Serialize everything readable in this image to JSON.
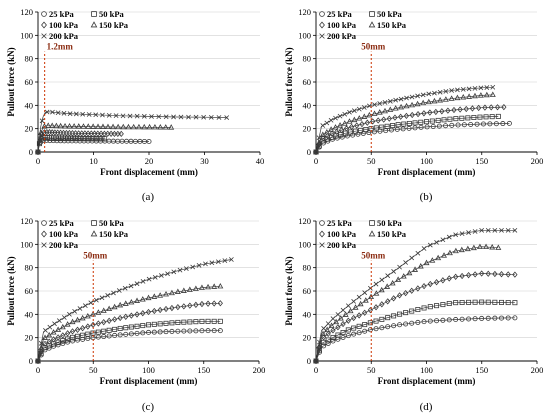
{
  "figure": {
    "axis_color": "#000000",
    "grid_color": "#d0d0d0",
    "marker_color": "#3a3a3a",
    "ref_line_color": "#cc3300",
    "ref_label_color": "#8b2c12"
  },
  "chart_data": [
    {
      "type": "scatter",
      "panel_label": "(a)",
      "xlabel": "Front displacement (mm)",
      "ylabel": "Pullout force (kN)",
      "xlim": [
        0,
        40
      ],
      "ylim": [
        0,
        120
      ],
      "xticks": [
        0,
        10,
        20,
        30,
        40
      ],
      "yticks": [
        0,
        20,
        40,
        60,
        80,
        100,
        120
      ],
      "legend_position": "top-left",
      "annotation": {
        "label": "1.2mm",
        "x": 1.2
      },
      "series": [
        {
          "name": "25 kPa",
          "marker": "circle",
          "points": [
            [
              0,
              0
            ],
            [
              0.2,
              5
            ],
            [
              0.4,
              8
            ],
            [
              0.7,
              9.5
            ],
            [
              1,
              10
            ],
            [
              1.3,
              10
            ],
            [
              2,
              9.8
            ],
            [
              4,
              9.6
            ],
            [
              7,
              9.5
            ],
            [
              10,
              9.4
            ],
            [
              13,
              9.3
            ],
            [
              16,
              9.2
            ],
            [
              18,
              9.1
            ],
            [
              20,
              9
            ]
          ]
        },
        {
          "name": "50 kPa",
          "marker": "square",
          "points": [
            [
              0,
              0
            ],
            [
              0.2,
              6
            ],
            [
              0.4,
              10
            ],
            [
              0.7,
              12
            ],
            [
              1,
              12.5
            ],
            [
              1.3,
              12.5
            ],
            [
              2,
              12.2
            ],
            [
              4,
              12
            ],
            [
              6,
              11.8
            ],
            [
              8,
              11.6
            ],
            [
              10,
              11.5
            ],
            [
              12,
              11.4
            ]
          ]
        },
        {
          "name": "100 kPa",
          "marker": "diamond",
          "points": [
            [
              0,
              0
            ],
            [
              0.2,
              7
            ],
            [
              0.5,
              13
            ],
            [
              0.8,
              16
            ],
            [
              1.2,
              17
            ],
            [
              2,
              17
            ],
            [
              4,
              16.5
            ],
            [
              7,
              16
            ],
            [
              10,
              15.8
            ],
            [
              13,
              15.6
            ],
            [
              15,
              15.5
            ]
          ]
        },
        {
          "name": "150 kPa",
          "marker": "triangle",
          "points": [
            [
              0,
              0
            ],
            [
              0.2,
              8
            ],
            [
              0.5,
              16
            ],
            [
              0.9,
              21
            ],
            [
              1.3,
              22.5
            ],
            [
              2,
              22.5
            ],
            [
              5,
              22
            ],
            [
              8,
              21.8
            ],
            [
              12,
              21.5
            ],
            [
              16,
              21.3
            ],
            [
              20,
              21.2
            ],
            [
              24,
              21
            ]
          ]
        },
        {
          "name": "200 kPa",
          "marker": "cross",
          "points": [
            [
              0,
              0
            ],
            [
              0.2,
              10
            ],
            [
              0.5,
              22
            ],
            [
              0.9,
              30
            ],
            [
              1.3,
              34
            ],
            [
              2,
              34.5
            ],
            [
              5,
              33
            ],
            [
              10,
              32
            ],
            [
              15,
              31
            ],
            [
              20,
              30.5
            ],
            [
              25,
              30
            ],
            [
              30,
              29.8
            ],
            [
              34,
              29.5
            ]
          ]
        }
      ]
    },
    {
      "type": "scatter",
      "panel_label": "(b)",
      "xlabel": "Front displacement (mm)",
      "ylabel": "Pullout force (kN)",
      "xlim": [
        0,
        200
      ],
      "ylim": [
        0,
        120
      ],
      "xticks": [
        0,
        50,
        100,
        150,
        200
      ],
      "yticks": [
        0,
        20,
        40,
        60,
        80,
        100,
        120
      ],
      "legend_position": "top-left",
      "annotation": {
        "label": "50mm",
        "x": 50
      },
      "series": [
        {
          "name": "25 kPa",
          "marker": "circle",
          "points": [
            [
              0,
              0
            ],
            [
              5,
              7
            ],
            [
              15,
              11
            ],
            [
              30,
              14
            ],
            [
              50,
              17
            ],
            [
              75,
              19.5
            ],
            [
              100,
              21.5
            ],
            [
              125,
              23
            ],
            [
              150,
              24
            ],
            [
              175,
              24.5
            ]
          ]
        },
        {
          "name": "50 kPa",
          "marker": "square",
          "points": [
            [
              0,
              0
            ],
            [
              5,
              9
            ],
            [
              15,
              13
            ],
            [
              30,
              17
            ],
            [
              50,
              20
            ],
            [
              75,
              23.5
            ],
            [
              100,
              26
            ],
            [
              125,
              28.5
            ],
            [
              150,
              30
            ],
            [
              165,
              30.5
            ]
          ]
        },
        {
          "name": "100 kPa",
          "marker": "diamond",
          "points": [
            [
              0,
              0
            ],
            [
              5,
              11
            ],
            [
              15,
              16
            ],
            [
              30,
              21
            ],
            [
              50,
              26
            ],
            [
              75,
              30
            ],
            [
              100,
              33.5
            ],
            [
              125,
              36
            ],
            [
              150,
              38
            ],
            [
              170,
              38.5
            ]
          ]
        },
        {
          "name": "150 kPa",
          "marker": "triangle",
          "points": [
            [
              0,
              0
            ],
            [
              5,
              14
            ],
            [
              15,
              20
            ],
            [
              30,
              26
            ],
            [
              50,
              32
            ],
            [
              75,
              38
            ],
            [
              100,
              42.5
            ],
            [
              125,
              46
            ],
            [
              150,
              48.5
            ],
            [
              160,
              49
            ]
          ]
        },
        {
          "name": "200 kPa",
          "marker": "cross",
          "points": [
            [
              0,
              0
            ],
            [
              5,
              22
            ],
            [
              15,
              28
            ],
            [
              30,
              34
            ],
            [
              50,
              40
            ],
            [
              75,
              45
            ],
            [
              100,
              49.5
            ],
            [
              125,
              53
            ],
            [
              150,
              55
            ],
            [
              160,
              55.5
            ]
          ]
        }
      ]
    },
    {
      "type": "scatter",
      "panel_label": "(c)",
      "xlabel": "Front displacement (mm)",
      "ylabel": "Pullout force (kN)",
      "xlim": [
        0,
        200
      ],
      "ylim": [
        0,
        120
      ],
      "xticks": [
        0,
        50,
        100,
        150,
        200
      ],
      "yticks": [
        0,
        20,
        40,
        60,
        80,
        100,
        120
      ],
      "legend_position": "top-left",
      "annotation": {
        "label": "50mm",
        "x": 50
      },
      "series": [
        {
          "name": "25 kPa",
          "marker": "circle",
          "points": [
            [
              0,
              0
            ],
            [
              5,
              9
            ],
            [
              15,
              13
            ],
            [
              30,
              17
            ],
            [
              50,
              20
            ],
            [
              75,
              22.5
            ],
            [
              100,
              24.5
            ],
            [
              125,
              25.5
            ],
            [
              150,
              26
            ],
            [
              165,
              26
            ]
          ]
        },
        {
          "name": "50 kPa",
          "marker": "square",
          "points": [
            [
              0,
              0
            ],
            [
              5,
              11
            ],
            [
              15,
              15
            ],
            [
              30,
              20
            ],
            [
              50,
              24
            ],
            [
              75,
              28
            ],
            [
              100,
              31
            ],
            [
              125,
              33
            ],
            [
              150,
              34
            ],
            [
              165,
              34
            ]
          ]
        },
        {
          "name": "100 kPa",
          "marker": "diamond",
          "points": [
            [
              0,
              0
            ],
            [
              5,
              14
            ],
            [
              15,
              19
            ],
            [
              30,
              25
            ],
            [
              50,
              31
            ],
            [
              75,
              37
            ],
            [
              100,
              42
            ],
            [
              125,
              46
            ],
            [
              150,
              49
            ],
            [
              165,
              49.5
            ]
          ]
        },
        {
          "name": "150 kPa",
          "marker": "triangle",
          "points": [
            [
              0,
              0
            ],
            [
              5,
              19
            ],
            [
              15,
              25
            ],
            [
              30,
              33
            ],
            [
              50,
              40
            ],
            [
              75,
              48
            ],
            [
              100,
              54
            ],
            [
              125,
              59
            ],
            [
              150,
              63
            ],
            [
              165,
              64
            ]
          ]
        },
        {
          "name": "200 kPa",
          "marker": "cross",
          "points": [
            [
              0,
              0
            ],
            [
              5,
              25
            ],
            [
              15,
              32
            ],
            [
              30,
              41
            ],
            [
              50,
              51
            ],
            [
              75,
              61
            ],
            [
              100,
              70
            ],
            [
              125,
              77
            ],
            [
              150,
              83
            ],
            [
              175,
              87
            ]
          ]
        }
      ]
    },
    {
      "type": "scatter",
      "panel_label": "(d)",
      "xlabel": "Front displacement (mm)",
      "ylabel": "Pullout force (kN)",
      "xlim": [
        0,
        200
      ],
      "ylim": [
        0,
        120
      ],
      "xticks": [
        0,
        50,
        100,
        150,
        200
      ],
      "yticks": [
        0,
        20,
        40,
        60,
        80,
        100,
        120
      ],
      "legend_position": "top-left",
      "annotation": {
        "label": "50mm",
        "x": 50
      },
      "series": [
        {
          "name": "25 kPa",
          "marker": "circle",
          "points": [
            [
              0,
              0
            ],
            [
              5,
              12
            ],
            [
              15,
              17
            ],
            [
              30,
              22
            ],
            [
              50,
              27
            ],
            [
              75,
              31
            ],
            [
              100,
              34
            ],
            [
              125,
              35.5
            ],
            [
              150,
              36.5
            ],
            [
              180,
              37
            ]
          ]
        },
        {
          "name": "50 kPa",
          "marker": "square",
          "points": [
            [
              0,
              0
            ],
            [
              5,
              15
            ],
            [
              15,
              20
            ],
            [
              30,
              27
            ],
            [
              50,
              33
            ],
            [
              75,
              40
            ],
            [
              100,
              46
            ],
            [
              125,
              50
            ],
            [
              150,
              50.5
            ],
            [
              180,
              50
            ]
          ]
        },
        {
          "name": "100 kPa",
          "marker": "diamond",
          "points": [
            [
              0,
              0
            ],
            [
              5,
              19
            ],
            [
              15,
              26
            ],
            [
              30,
              35
            ],
            [
              50,
              44
            ],
            [
              75,
              56
            ],
            [
              100,
              65
            ],
            [
              125,
              72
            ],
            [
              150,
              75
            ],
            [
              180,
              74
            ]
          ]
        },
        {
          "name": "150 kPa",
          "marker": "triangle",
          "points": [
            [
              0,
              0
            ],
            [
              5,
              22
            ],
            [
              15,
              31
            ],
            [
              30,
              42
            ],
            [
              50,
              55
            ],
            [
              75,
              70
            ],
            [
              100,
              84
            ],
            [
              125,
              94
            ],
            [
              150,
              98
            ],
            [
              165,
              97
            ]
          ]
        },
        {
          "name": "200 kPa",
          "marker": "cross",
          "points": [
            [
              0,
              0
            ],
            [
              5,
              26
            ],
            [
              15,
              36
            ],
            [
              30,
              48
            ],
            [
              50,
              63
            ],
            [
              75,
              80
            ],
            [
              100,
              98
            ],
            [
              125,
              108
            ],
            [
              150,
              112
            ],
            [
              180,
              112
            ]
          ]
        }
      ]
    }
  ]
}
